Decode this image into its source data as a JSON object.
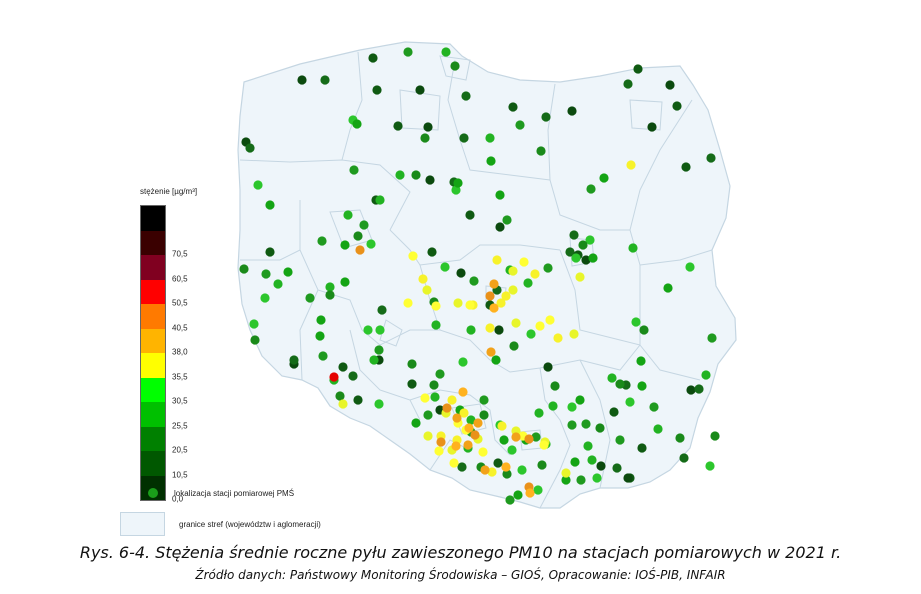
{
  "legend": {
    "title": "stężenie [µg/m³]",
    "station_label": "lokalizacja stacji pomiarowej PMŚ",
    "zone_label": "granice stref (województw i aglomeracji)",
    "scale": [
      {
        "color": "#000000",
        "tick": ""
      },
      {
        "color": "#3a0000",
        "tick": "70,5"
      },
      {
        "color": "#800020",
        "tick": "60,5"
      },
      {
        "color": "#ff0000",
        "tick": "50,5"
      },
      {
        "color": "#ff7a00",
        "tick": "40,5"
      },
      {
        "color": "#ffb400",
        "tick": "38,0"
      },
      {
        "color": "#ffff00",
        "tick": "35,5"
      },
      {
        "color": "#00ff00",
        "tick": "30,5"
      },
      {
        "color": "#00c000",
        "tick": "25,5"
      },
      {
        "color": "#008000",
        "tick": "20,5"
      },
      {
        "color": "#005800",
        "tick": "10,5"
      },
      {
        "color": "#003000",
        "tick": "0,0"
      }
    ]
  },
  "caption": {
    "main": "Rys. 6-4. Stężenia średnie roczne pyłu zawieszonego PM10 na stacjach pomiarowych w 2021 r.",
    "source": "Źródło danych: Państwowy Monitoring Środowiska – GIOŚ, Opracowanie: IOŚ-PIB, INFAIR"
  },
  "stations": {
    "dark": [
      [
        373,
        58
      ],
      [
        302,
        80
      ],
      [
        325,
        80
      ],
      [
        377,
        90
      ],
      [
        420,
        90
      ],
      [
        466,
        96
      ],
      [
        513,
        107
      ],
      [
        572,
        111
      ],
      [
        546,
        117
      ],
      [
        398,
        126
      ],
      [
        428,
        127
      ],
      [
        464,
        138
      ],
      [
        638,
        69
      ],
      [
        670,
        85
      ],
      [
        628,
        84
      ],
      [
        677,
        106
      ],
      [
        652,
        127
      ],
      [
        711,
        158
      ],
      [
        686,
        167
      ],
      [
        246,
        142
      ],
      [
        250,
        148
      ],
      [
        376,
        200
      ],
      [
        430,
        180
      ],
      [
        454,
        182
      ],
      [
        470,
        215
      ],
      [
        500,
        227
      ],
      [
        574,
        235
      ],
      [
        578,
        255
      ],
      [
        586,
        260
      ],
      [
        570,
        252
      ],
      [
        432,
        252
      ],
      [
        461,
        273
      ],
      [
        497,
        290
      ],
      [
        490,
        305
      ],
      [
        499,
        330
      ],
      [
        382,
        310
      ],
      [
        343,
        367
      ],
      [
        294,
        364
      ],
      [
        294,
        360
      ],
      [
        412,
        384
      ],
      [
        379,
        360
      ],
      [
        353,
        376
      ],
      [
        358,
        400
      ],
      [
        440,
        410
      ],
      [
        462,
        467
      ],
      [
        498,
        463
      ],
      [
        548,
        367
      ],
      [
        626,
        385
      ],
      [
        614,
        412
      ],
      [
        601,
        466
      ],
      [
        617,
        468
      ],
      [
        642,
        448
      ],
      [
        691,
        390
      ],
      [
        699,
        389
      ],
      [
        630,
        478
      ],
      [
        628,
        478
      ],
      [
        684,
        458
      ],
      [
        270,
        252
      ]
    ],
    "medium": [
      [
        408,
        52
      ],
      [
        446,
        52
      ],
      [
        455,
        66
      ],
      [
        353,
        120
      ],
      [
        357,
        124
      ],
      [
        520,
        125
      ],
      [
        490,
        138
      ],
      [
        425,
        138
      ],
      [
        258,
        185
      ],
      [
        270,
        205
      ],
      [
        354,
        170
      ],
      [
        400,
        175
      ],
      [
        416,
        175
      ],
      [
        456,
        190
      ],
      [
        458,
        183
      ],
      [
        322,
        241
      ],
      [
        348,
        215
      ],
      [
        358,
        236
      ],
      [
        371,
        244
      ],
      [
        345,
        245
      ],
      [
        364,
        225
      ],
      [
        380,
        200
      ],
      [
        244,
        269
      ],
      [
        265,
        298
      ],
      [
        288,
        272
      ],
      [
        310,
        298
      ],
      [
        330,
        287
      ],
      [
        330,
        295
      ],
      [
        368,
        330
      ],
      [
        345,
        282
      ],
      [
        379,
        350
      ],
      [
        374,
        360
      ],
      [
        255,
        340
      ],
      [
        254,
        324
      ],
      [
        320,
        336
      ],
      [
        323,
        356
      ],
      [
        334,
        380
      ],
      [
        340,
        396
      ],
      [
        379,
        404
      ],
      [
        416,
        423
      ],
      [
        428,
        415
      ],
      [
        435,
        397
      ],
      [
        434,
        385
      ],
      [
        463,
        362
      ],
      [
        460,
        410
      ],
      [
        484,
        400
      ],
      [
        471,
        420
      ],
      [
        484,
        415
      ],
      [
        500,
        425
      ],
      [
        504,
        440
      ],
      [
        471,
        432
      ],
      [
        468,
        448
      ],
      [
        481,
        467
      ],
      [
        512,
        450
      ],
      [
        526,
        440
      ],
      [
        536,
        437
      ],
      [
        546,
        444
      ],
      [
        507,
        474
      ],
      [
        522,
        470
      ],
      [
        518,
        495
      ],
      [
        510,
        500
      ],
      [
        553,
        406
      ],
      [
        555,
        386
      ],
      [
        572,
        407
      ],
      [
        580,
        400
      ],
      [
        586,
        424
      ],
      [
        612,
        378
      ],
      [
        620,
        384
      ],
      [
        630,
        402
      ],
      [
        642,
        386
      ],
      [
        654,
        407
      ],
      [
        658,
        429
      ],
      [
        680,
        438
      ],
      [
        690,
        267
      ],
      [
        668,
        288
      ],
      [
        712,
        338
      ],
      [
        706,
        375
      ],
      [
        715,
        436
      ],
      [
        710,
        466
      ],
      [
        604,
        178
      ],
      [
        591,
        189
      ],
      [
        633,
        248
      ],
      [
        644,
        330
      ],
      [
        636,
        322
      ],
      [
        641,
        361
      ],
      [
        620,
        440
      ],
      [
        588,
        446
      ],
      [
        600,
        428
      ],
      [
        597,
        478
      ],
      [
        575,
        462
      ],
      [
        572,
        425
      ],
      [
        539,
        413
      ],
      [
        542,
        465
      ],
      [
        538,
        490
      ],
      [
        500,
        195
      ],
      [
        507,
        220
      ],
      [
        510,
        270
      ],
      [
        541,
        151
      ],
      [
        590,
        240
      ],
      [
        593,
        258
      ],
      [
        548,
        268
      ],
      [
        528,
        283
      ],
      [
        514,
        346
      ],
      [
        531,
        334
      ],
      [
        496,
        360
      ],
      [
        440,
        374
      ],
      [
        436,
        325
      ],
      [
        434,
        302
      ],
      [
        445,
        267
      ],
      [
        491,
        161
      ],
      [
        474,
        281
      ],
      [
        471,
        330
      ],
      [
        412,
        364
      ],
      [
        380,
        330
      ],
      [
        321,
        320
      ],
      [
        266,
        274
      ],
      [
        278,
        284
      ],
      [
        583,
        245
      ],
      [
        576,
        258
      ],
      [
        566,
        480
      ],
      [
        581,
        480
      ],
      [
        592,
        460
      ]
    ],
    "bright": [
      [
        550,
        320
      ],
      [
        558,
        338
      ],
      [
        574,
        334
      ],
      [
        524,
        262
      ],
      [
        497,
        260
      ],
      [
        580,
        277
      ],
      [
        413,
        256
      ],
      [
        423,
        279
      ],
      [
        427,
        290
      ],
      [
        408,
        303
      ],
      [
        473,
        305
      ],
      [
        458,
        303
      ],
      [
        470,
        305
      ],
      [
        506,
        296
      ],
      [
        513,
        290
      ],
      [
        466,
        430
      ],
      [
        441,
        436
      ],
      [
        428,
        436
      ],
      [
        439,
        451
      ],
      [
        457,
        440
      ],
      [
        452,
        450
      ],
      [
        458,
        423
      ],
      [
        464,
        413
      ],
      [
        478,
        439
      ],
      [
        454,
        463
      ],
      [
        502,
        426
      ],
      [
        516,
        431
      ],
      [
        523,
        436
      ],
      [
        501,
        303
      ],
      [
        516,
        323
      ],
      [
        540,
        326
      ],
      [
        631,
        165
      ],
      [
        343,
        404
      ],
      [
        436,
        306
      ],
      [
        490,
        328
      ],
      [
        545,
        442
      ],
      [
        483,
        452
      ],
      [
        492,
        472
      ],
      [
        566,
        473
      ],
      [
        544,
        445
      ],
      [
        452,
        400
      ],
      [
        446,
        413
      ],
      [
        425,
        398
      ],
      [
        535,
        274
      ],
      [
        513,
        271
      ]
    ],
    "orange": [
      [
        494,
        284
      ],
      [
        490,
        296
      ],
      [
        494,
        308
      ],
      [
        491,
        352
      ],
      [
        360,
        250
      ],
      [
        463,
        392
      ],
      [
        457,
        418
      ],
      [
        441,
        442
      ],
      [
        469,
        428
      ],
      [
        478,
        423
      ],
      [
        447,
        408
      ],
      [
        506,
        467
      ],
      [
        516,
        437
      ],
      [
        529,
        439
      ],
      [
        456,
        446
      ],
      [
        485,
        470
      ],
      [
        529,
        487
      ],
      [
        530,
        493
      ],
      [
        468,
        445
      ],
      [
        475,
        435
      ]
    ],
    "red": [
      [
        334,
        377
      ]
    ]
  }
}
